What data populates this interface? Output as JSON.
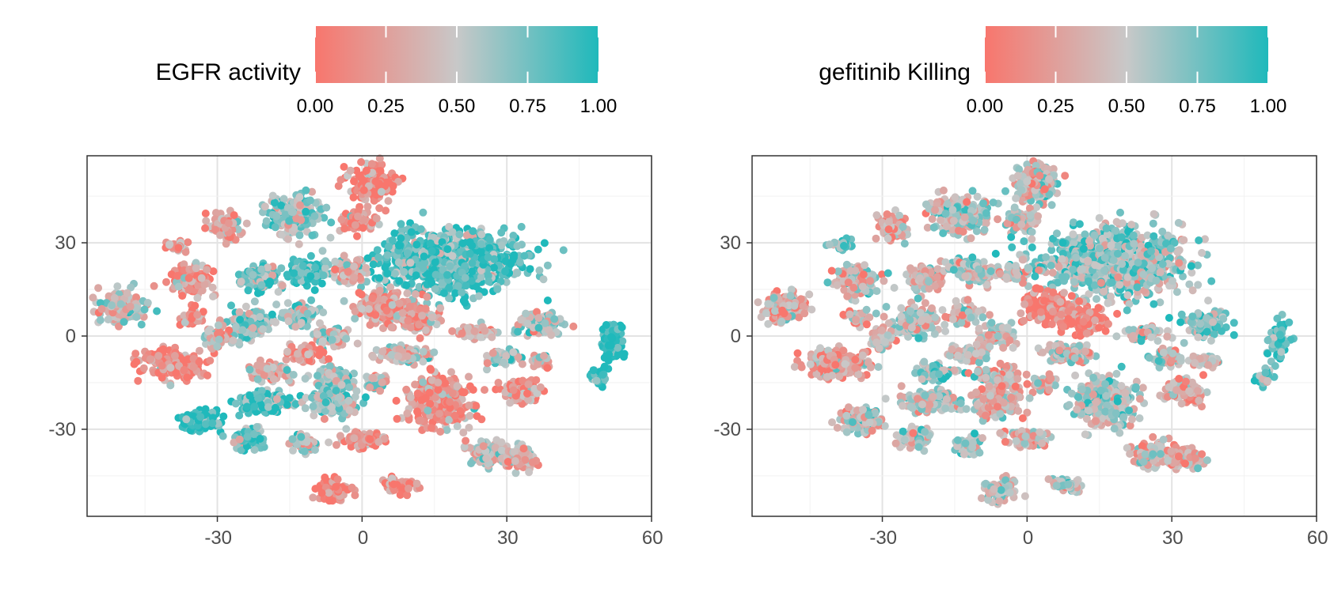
{
  "chart_data": [
    {
      "type": "scatter",
      "title": "",
      "xlabel": "",
      "ylabel": "",
      "xlim": [
        -57,
        60
      ],
      "ylim": [
        -58,
        58
      ],
      "xticks": [
        -30,
        0,
        30,
        60
      ],
      "yticks": [
        -30,
        0,
        30
      ],
      "grid": true,
      "color_legend": {
        "title": "EGFR activity",
        "position": "top",
        "range": [
          0,
          1
        ],
        "ticks": [
          "0.00",
          "0.25",
          "0.50",
          "0.75",
          "1.00"
        ],
        "low_color": "#F8766D",
        "mid_color": "#C8C8C8",
        "high_color": "#1FB9BB"
      },
      "clusters": [
        {
          "x": 2,
          "y": 49,
          "sx": 2.6,
          "sy": 3.3,
          "value": 0.06
        },
        {
          "x": -14,
          "y": 39,
          "sx": 3.1,
          "sy": 3.5,
          "value": 0.62
        },
        {
          "x": -28,
          "y": 35,
          "sx": 1.9,
          "sy": 2.3,
          "value": 0.25
        },
        {
          "x": -38,
          "y": 29,
          "sx": 1.2,
          "sy": 1.0,
          "value": 0.3
        },
        {
          "x": -1,
          "y": 37,
          "sx": 2.0,
          "sy": 1.8,
          "value": 0.18
        },
        {
          "x": 18,
          "y": 24,
          "sx": 8.0,
          "sy": 5.5,
          "value": 0.86
        },
        {
          "x": -35,
          "y": 18,
          "sx": 2.3,
          "sy": 2.7,
          "value": 0.2
        },
        {
          "x": -21,
          "y": 19,
          "sx": 2.2,
          "sy": 2.2,
          "value": 0.7
        },
        {
          "x": -11,
          "y": 21,
          "sx": 2.4,
          "sy": 2.2,
          "value": 0.85
        },
        {
          "x": -2,
          "y": 21,
          "sx": 1.7,
          "sy": 1.9,
          "value": 0.4
        },
        {
          "x": -50,
          "y": 9,
          "sx": 2.6,
          "sy": 2.8,
          "value": 0.45
        },
        {
          "x": -35,
          "y": 6,
          "sx": 1.4,
          "sy": 1.4,
          "value": 0.15
        },
        {
          "x": -23,
          "y": 4,
          "sx": 2.6,
          "sy": 2.6,
          "value": 0.68
        },
        {
          "x": -13,
          "y": 7,
          "sx": 1.9,
          "sy": 1.9,
          "value": 0.6
        },
        {
          "x": 5,
          "y": 9,
          "sx": 3.4,
          "sy": 2.8,
          "value": 0.22
        },
        {
          "x": 12,
          "y": 5,
          "sx": 2.5,
          "sy": 2.2,
          "value": 0.3
        },
        {
          "x": 37,
          "y": 4,
          "sx": 2.6,
          "sy": 2.1,
          "value": 0.55
        },
        {
          "x": 52,
          "y": -2,
          "sx": 1.2,
          "sy": 3.3,
          "value": 0.95
        },
        {
          "x": -30,
          "y": -1,
          "sx": 1.6,
          "sy": 1.9,
          "value": 0.4
        },
        {
          "x": -6,
          "y": 0,
          "sx": 2.0,
          "sy": 1.8,
          "value": 0.5
        },
        {
          "x": 24,
          "y": 1,
          "sx": 2.2,
          "sy": 1.2,
          "value": 0.35
        },
        {
          "x": -39,
          "y": -9,
          "sx": 3.6,
          "sy": 2.5,
          "value": 0.1
        },
        {
          "x": -12,
          "y": -6,
          "sx": 2.2,
          "sy": 1.5,
          "value": 0.15
        },
        {
          "x": 9,
          "y": -6,
          "sx": 3.0,
          "sy": 1.6,
          "value": 0.45
        },
        {
          "x": 29,
          "y": -7,
          "sx": 2.0,
          "sy": 1.4,
          "value": 0.55
        },
        {
          "x": 37,
          "y": -8,
          "sx": 1.4,
          "sy": 1.2,
          "value": 0.35
        },
        {
          "x": -19,
          "y": -12,
          "sx": 2.3,
          "sy": 1.7,
          "value": 0.4
        },
        {
          "x": -6,
          "y": -13,
          "sx": 2.3,
          "sy": 1.8,
          "value": 0.55
        },
        {
          "x": 3,
          "y": -15,
          "sx": 1.3,
          "sy": 1.3,
          "value": 0.45
        },
        {
          "x": 49,
          "y": -13,
          "sx": 0.9,
          "sy": 1.6,
          "value": 0.95
        },
        {
          "x": -20,
          "y": -21,
          "sx": 3.3,
          "sy": 1.9,
          "value": 0.85
        },
        {
          "x": -6,
          "y": -21,
          "sx": 2.9,
          "sy": 2.6,
          "value": 0.6
        },
        {
          "x": 16,
          "y": -21,
          "sx": 3.6,
          "sy": 4.2,
          "value": 0.2
        },
        {
          "x": 33,
          "y": -18,
          "sx": 2.4,
          "sy": 2.0,
          "value": 0.25
        },
        {
          "x": -34,
          "y": -27,
          "sx": 2.4,
          "sy": 2.1,
          "value": 0.95
        },
        {
          "x": -23,
          "y": -33,
          "sx": 1.8,
          "sy": 1.9,
          "value": 0.8
        },
        {
          "x": -12,
          "y": -35,
          "sx": 1.7,
          "sy": 1.7,
          "value": 0.55
        },
        {
          "x": 0,
          "y": -33,
          "sx": 2.4,
          "sy": 1.5,
          "value": 0.2
        },
        {
          "x": 26,
          "y": -38,
          "sx": 2.3,
          "sy": 2.2,
          "value": 0.45
        },
        {
          "x": 33,
          "y": -39,
          "sx": 2.1,
          "sy": 2.1,
          "value": 0.4
        },
        {
          "x": -6,
          "y": -50,
          "sx": 1.9,
          "sy": 2.2,
          "value": 0.1
        },
        {
          "x": 8,
          "y": -48,
          "sx": 1.9,
          "sy": 1.3,
          "value": 0.15
        }
      ]
    },
    {
      "type": "scatter",
      "title": "",
      "xlabel": "",
      "ylabel": "",
      "xlim": [
        -57,
        60
      ],
      "ylim": [
        -58,
        58
      ],
      "xticks": [
        -30,
        0,
        30,
        60
      ],
      "yticks": [
        -30,
        0,
        30
      ],
      "grid": true,
      "color_legend": {
        "title": "gefitinib Killing",
        "position": "top",
        "range": [
          0,
          1
        ],
        "ticks": [
          "0.00",
          "0.25",
          "0.50",
          "0.75",
          "1.00"
        ],
        "low_color": "#F8766D",
        "mid_color": "#C8C8C8",
        "high_color": "#1FB9BB"
      },
      "clusters": [
        {
          "x": 2,
          "y": 49,
          "sx": 2.6,
          "sy": 3.3,
          "value": 0.4
        },
        {
          "x": -14,
          "y": 39,
          "sx": 3.1,
          "sy": 3.5,
          "value": 0.55
        },
        {
          "x": -28,
          "y": 35,
          "sx": 1.9,
          "sy": 2.3,
          "value": 0.3
        },
        {
          "x": -38,
          "y": 29,
          "sx": 1.2,
          "sy": 1.0,
          "value": 0.7
        },
        {
          "x": -1,
          "y": 37,
          "sx": 2.0,
          "sy": 1.8,
          "value": 0.45
        },
        {
          "x": 18,
          "y": 24,
          "sx": 8.0,
          "sy": 5.5,
          "value": 0.65
        },
        {
          "x": -35,
          "y": 18,
          "sx": 2.3,
          "sy": 2.7,
          "value": 0.45
        },
        {
          "x": -21,
          "y": 19,
          "sx": 2.2,
          "sy": 2.2,
          "value": 0.4
        },
        {
          "x": -11,
          "y": 21,
          "sx": 2.4,
          "sy": 2.2,
          "value": 0.55
        },
        {
          "x": -2,
          "y": 21,
          "sx": 1.7,
          "sy": 1.9,
          "value": 0.45
        },
        {
          "x": -50,
          "y": 9,
          "sx": 2.6,
          "sy": 2.8,
          "value": 0.3
        },
        {
          "x": -35,
          "y": 6,
          "sx": 1.4,
          "sy": 1.4,
          "value": 0.35
        },
        {
          "x": -23,
          "y": 4,
          "sx": 2.6,
          "sy": 2.6,
          "value": 0.45
        },
        {
          "x": -13,
          "y": 7,
          "sx": 1.9,
          "sy": 1.9,
          "value": 0.45
        },
        {
          "x": 5,
          "y": 9,
          "sx": 3.4,
          "sy": 2.8,
          "value": 0.05
        },
        {
          "x": 12,
          "y": 5,
          "sx": 2.5,
          "sy": 2.2,
          "value": 0.08
        },
        {
          "x": 37,
          "y": 4,
          "sx": 2.6,
          "sy": 2.1,
          "value": 0.65
        },
        {
          "x": 52,
          "y": -2,
          "sx": 1.2,
          "sy": 3.3,
          "value": 0.85
        },
        {
          "x": -30,
          "y": -1,
          "sx": 1.6,
          "sy": 1.9,
          "value": 0.35
        },
        {
          "x": -6,
          "y": 0,
          "sx": 2.0,
          "sy": 1.8,
          "value": 0.45
        },
        {
          "x": 24,
          "y": 1,
          "sx": 2.2,
          "sy": 1.2,
          "value": 0.45
        },
        {
          "x": -39,
          "y": -9,
          "sx": 3.6,
          "sy": 2.5,
          "value": 0.25
        },
        {
          "x": -12,
          "y": -6,
          "sx": 2.2,
          "sy": 1.5,
          "value": 0.45
        },
        {
          "x": 9,
          "y": -6,
          "sx": 3.0,
          "sy": 1.6,
          "value": 0.5
        },
        {
          "x": 29,
          "y": -7,
          "sx": 2.0,
          "sy": 1.4,
          "value": 0.4
        },
        {
          "x": 37,
          "y": -8,
          "sx": 1.4,
          "sy": 1.2,
          "value": 0.45
        },
        {
          "x": -19,
          "y": -12,
          "sx": 2.3,
          "sy": 1.7,
          "value": 0.65
        },
        {
          "x": -6,
          "y": -13,
          "sx": 2.3,
          "sy": 1.8,
          "value": 0.4
        },
        {
          "x": 3,
          "y": -15,
          "sx": 1.3,
          "sy": 1.3,
          "value": 0.35
        },
        {
          "x": 49,
          "y": -13,
          "sx": 0.9,
          "sy": 1.6,
          "value": 0.7
        },
        {
          "x": -20,
          "y": -21,
          "sx": 3.3,
          "sy": 1.9,
          "value": 0.5
        },
        {
          "x": -6,
          "y": -21,
          "sx": 2.9,
          "sy": 2.6,
          "value": 0.35
        },
        {
          "x": 16,
          "y": -21,
          "sx": 3.6,
          "sy": 4.2,
          "value": 0.6
        },
        {
          "x": 33,
          "y": -18,
          "sx": 2.4,
          "sy": 2.0,
          "value": 0.3
        },
        {
          "x": -34,
          "y": -27,
          "sx": 2.4,
          "sy": 2.1,
          "value": 0.5
        },
        {
          "x": -23,
          "y": -33,
          "sx": 1.8,
          "sy": 1.9,
          "value": 0.5
        },
        {
          "x": -12,
          "y": -35,
          "sx": 1.7,
          "sy": 1.7,
          "value": 0.55
        },
        {
          "x": 0,
          "y": -33,
          "sx": 2.4,
          "sy": 1.5,
          "value": 0.35
        },
        {
          "x": 26,
          "y": -38,
          "sx": 2.3,
          "sy": 2.2,
          "value": 0.4
        },
        {
          "x": 33,
          "y": -39,
          "sx": 2.1,
          "sy": 2.1,
          "value": 0.35
        },
        {
          "x": -6,
          "y": -50,
          "sx": 1.9,
          "sy": 2.2,
          "value": 0.45
        },
        {
          "x": 8,
          "y": -48,
          "sx": 1.9,
          "sy": 1.3,
          "value": 0.6
        }
      ]
    }
  ]
}
